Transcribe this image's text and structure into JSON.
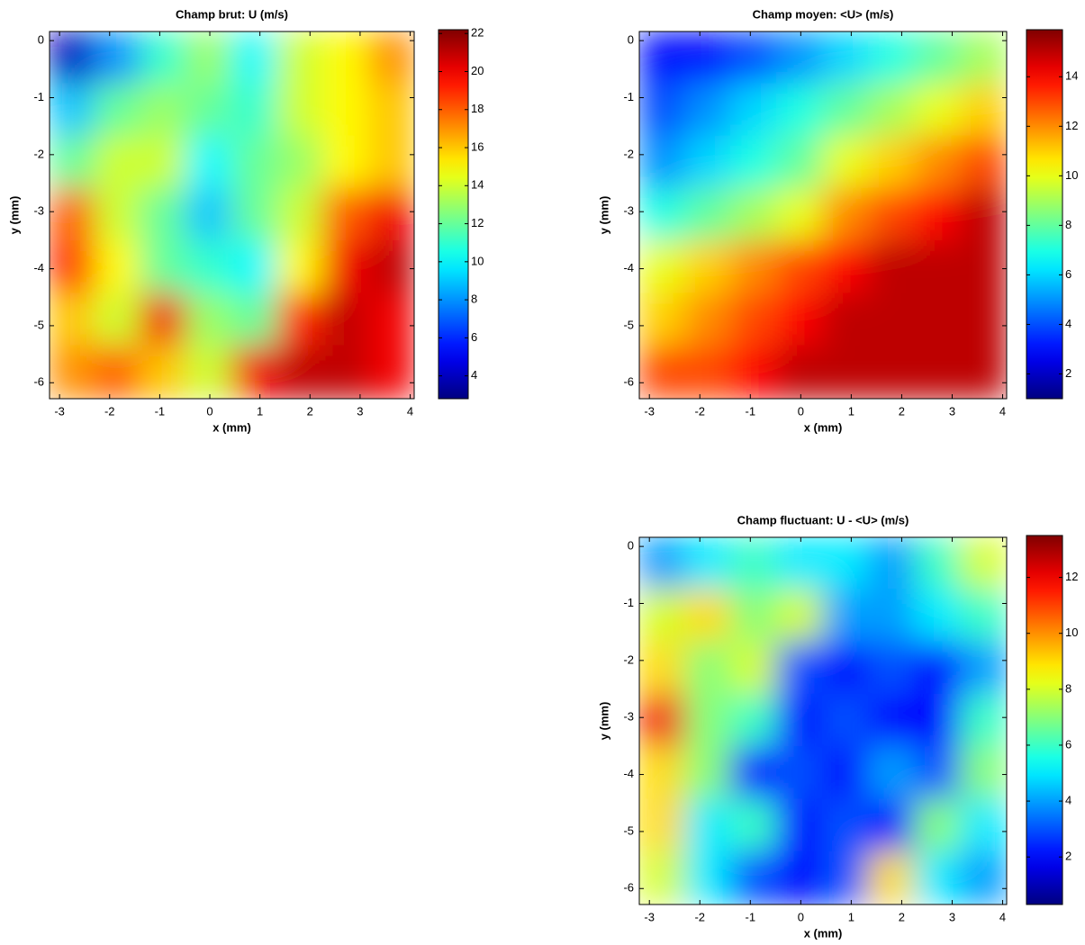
{
  "chart_data": [
    {
      "type": "heatmap",
      "title": "Champ brut: U (m/s)",
      "xlabel": "x (mm)",
      "ylabel": "y (mm)",
      "xlim": [
        -3.2,
        4.08
      ],
      "ylim": [
        -6.28,
        0.16
      ],
      "xticks": [
        -3,
        -2,
        -1,
        0,
        1,
        2,
        3,
        4
      ],
      "yticks": [
        0,
        -1,
        -2,
        -3,
        -4,
        -5,
        -6
      ],
      "colormap": "jet",
      "clim": [
        2.8,
        22.2
      ],
      "cticks": [
        4,
        6,
        8,
        10,
        12,
        14,
        16,
        18,
        20,
        22
      ],
      "z": [
        [
          4,
          8,
          11,
          13,
          10,
          14,
          15,
          17
        ],
        [
          9,
          12,
          13,
          12,
          11,
          14,
          15,
          16
        ],
        [
          12,
          14,
          14,
          10,
          12,
          13,
          15,
          16
        ],
        [
          18,
          14,
          12,
          9,
          12,
          14,
          18,
          20
        ],
        [
          19,
          15,
          12,
          11,
          10,
          15,
          20,
          21
        ],
        [
          16,
          14,
          20,
          13,
          12,
          19,
          21,
          20
        ],
        [
          17,
          18,
          16,
          14,
          20,
          21,
          21,
          20
        ]
      ]
    },
    {
      "type": "heatmap",
      "title": "Champ moyen: <U> (m/s)",
      "xlabel": "x (mm)",
      "ylabel": "y (mm)",
      "xlim": [
        -3.2,
        4.08
      ],
      "ylim": [
        -6.28,
        0.16
      ],
      "xticks": [
        -3,
        -2,
        -1,
        0,
        1,
        2,
        3,
        4
      ],
      "yticks": [
        0,
        -1,
        -2,
        -3,
        -4,
        -5,
        -6
      ],
      "colormap": "jet",
      "clim": [
        1,
        15.9
      ],
      "cticks": [
        2,
        4,
        6,
        8,
        10,
        12,
        14
      ],
      "z": [
        [
          3,
          3,
          4,
          5,
          6,
          7,
          8,
          9
        ],
        [
          4,
          5,
          6,
          7,
          8,
          9,
          10,
          11
        ],
        [
          5,
          6,
          7,
          8,
          10,
          11,
          12,
          13
        ],
        [
          7,
          8,
          9,
          10,
          12,
          13,
          14,
          15
        ],
        [
          10,
          11,
          12,
          13,
          14,
          15,
          15,
          15
        ],
        [
          11,
          12,
          13,
          14,
          15,
          15,
          15,
          15
        ],
        [
          13,
          13,
          14,
          15,
          15,
          15,
          15,
          15
        ]
      ]
    },
    {
      "type": "heatmap",
      "title": "Champ fluctuant: U - <U> (m/s)",
      "xlabel": "x (mm)",
      "ylabel": "y (mm)",
      "xlim": [
        -3.2,
        4.08
      ],
      "ylim": [
        -6.28,
        0.16
      ],
      "xticks": [
        -3,
        -2,
        -1,
        0,
        1,
        2,
        3,
        4
      ],
      "yticks": [
        0,
        -1,
        -2,
        -3,
        -4,
        -5,
        -6
      ],
      "colormap": "jet",
      "clim": [
        0.3,
        13.5
      ],
      "cticks": [
        2,
        4,
        6,
        8,
        10,
        12
      ],
      "z": [
        [
          4,
          5,
          6,
          5,
          5,
          4,
          6,
          8
        ],
        [
          8,
          9,
          7,
          8,
          4,
          4,
          5,
          6
        ],
        [
          9,
          7,
          8,
          3,
          2,
          3,
          2,
          4
        ],
        [
          12,
          7,
          6,
          2,
          3,
          2,
          2,
          6
        ],
        [
          9,
          7,
          2,
          3,
          2,
          4,
          3,
          7
        ],
        [
          9,
          5,
          6,
          2,
          3,
          2,
          7,
          5
        ],
        [
          8,
          5,
          3,
          2,
          3,
          9,
          5,
          4
        ]
      ]
    }
  ]
}
